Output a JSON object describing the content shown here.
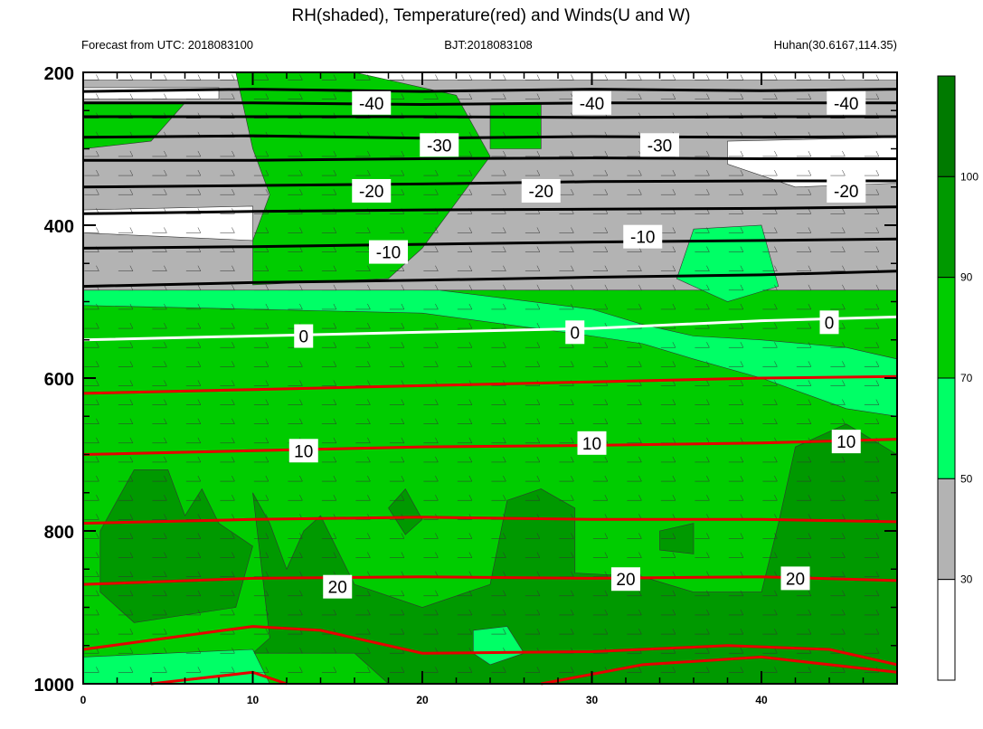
{
  "header": {
    "title": "RH(shaded), Temperature(red) and Winds(U and W)",
    "left": "Forecast from UTC: 2018083100",
    "center": "BJT:2018083108",
    "right": "Huhan(30.6167,114.35)"
  },
  "colors": {
    "gray": "#b3b3b3",
    "light_green": "#00ff66",
    "green": "#00cc00",
    "dark_green": "#009900",
    "darkest_green": "#007a00",
    "temp_red": "#e60000",
    "isotherm_black": "#000000",
    "freezing_white": "#ffffff"
  },
  "chart_data": {
    "type": "heatmap",
    "title": "RH(shaded), Temperature(red) and Winds(U and W)",
    "x": {
      "label": "",
      "range": [
        0,
        48
      ],
      "ticks": [
        "0",
        "10",
        "20",
        "30",
        "40"
      ]
    },
    "y": {
      "label": "",
      "range": [
        1000,
        200
      ],
      "ticks": [
        "200",
        "400",
        "600",
        "800",
        "1000"
      ]
    },
    "colorbar": {
      "labels": [
        "30",
        "50",
        "70",
        "90",
        "100"
      ],
      "levels": [
        {
          "min": 0,
          "max": 30,
          "color": "#ffffff"
        },
        {
          "min": 30,
          "max": 50,
          "color": "#b3b3b3"
        },
        {
          "min": 50,
          "max": 70,
          "color": "#00ff66"
        },
        {
          "min": 70,
          "max": 90,
          "color": "#00cc00"
        },
        {
          "min": 90,
          "max": 100,
          "color": "#009900"
        },
        {
          "min": 100,
          "max": 110,
          "color": "#007a00"
        }
      ]
    },
    "rh_regions": [
      {
        "level": "gray",
        "poly": [
          [
            0,
            210
          ],
          [
            48,
            210
          ],
          [
            48,
            570
          ],
          [
            44,
            560
          ],
          [
            36,
            545
          ],
          [
            33,
            530
          ],
          [
            30,
            520
          ],
          [
            25,
            510
          ],
          [
            20,
            495
          ],
          [
            15,
            485
          ],
          [
            0,
            485
          ]
        ]
      },
      {
        "level": "green",
        "poly": [
          [
            9,
            200
          ],
          [
            16,
            200
          ],
          [
            22,
            230
          ],
          [
            24,
            310
          ],
          [
            22,
            370
          ],
          [
            20,
            430
          ],
          [
            18,
            470
          ],
          [
            10,
            478
          ],
          [
            10,
            420
          ],
          [
            11,
            360
          ],
          [
            10,
            300
          ]
        ]
      },
      {
        "level": "green",
        "poly": [
          [
            0,
            240
          ],
          [
            6,
            240
          ],
          [
            4,
            290
          ],
          [
            0,
            300
          ]
        ]
      },
      {
        "level": "green",
        "poly": [
          [
            24,
            240
          ],
          [
            27,
            240
          ],
          [
            27,
            300
          ],
          [
            24,
            300
          ]
        ]
      },
      {
        "level": "white",
        "poly": [
          [
            0,
            380
          ],
          [
            10,
            375
          ],
          [
            10,
            420
          ],
          [
            0,
            410
          ]
        ]
      },
      {
        "level": "white",
        "poly": [
          [
            38,
            290
          ],
          [
            48,
            285
          ],
          [
            48,
            345
          ],
          [
            42,
            350
          ],
          [
            38,
            320
          ]
        ]
      },
      {
        "level": "white",
        "poly": [
          [
            0,
            220
          ],
          [
            8,
            220
          ],
          [
            8,
            235
          ],
          [
            0,
            235
          ]
        ]
      },
      {
        "level": "green",
        "poly": [
          [
            0,
            485
          ],
          [
            48,
            485
          ],
          [
            48,
            1000
          ],
          [
            0,
            1000
          ]
        ]
      },
      {
        "level": "light",
        "poly": [
          [
            0,
            485
          ],
          [
            21,
            485
          ],
          [
            30,
            510
          ],
          [
            33,
            530
          ],
          [
            36,
            545
          ],
          [
            40,
            550
          ],
          [
            45,
            560
          ],
          [
            48,
            575
          ],
          [
            48,
            650
          ],
          [
            45,
            640
          ],
          [
            40,
            600
          ],
          [
            36,
            575
          ],
          [
            33,
            555
          ],
          [
            30,
            545
          ],
          [
            25,
            530
          ],
          [
            20,
            515
          ],
          [
            10,
            510
          ],
          [
            0,
            505
          ]
        ]
      },
      {
        "level": "light",
        "poly": [
          [
            36,
            405
          ],
          [
            40,
            400
          ],
          [
            41,
            480
          ],
          [
            38,
            500
          ],
          [
            35,
            470
          ]
        ]
      },
      {
        "level": "dark",
        "poly": [
          [
            1,
            800
          ],
          [
            3,
            720
          ],
          [
            5,
            720
          ],
          [
            6,
            780
          ],
          [
            7,
            745
          ],
          [
            8,
            790
          ],
          [
            10,
            820
          ],
          [
            9,
            900
          ],
          [
            3,
            920
          ],
          [
            1,
            880
          ]
        ]
      },
      {
        "level": "dark",
        "poly": [
          [
            10,
            750
          ],
          [
            11,
            790
          ],
          [
            12,
            850
          ],
          [
            13,
            800
          ],
          [
            14,
            780
          ],
          [
            16,
            870
          ],
          [
            20,
            900
          ],
          [
            24,
            870
          ],
          [
            25,
            760
          ],
          [
            27,
            745
          ],
          [
            29,
            770
          ],
          [
            29,
            855
          ],
          [
            33,
            860
          ],
          [
            36,
            880
          ],
          [
            40,
            880
          ],
          [
            41,
            790
          ],
          [
            42,
            690
          ],
          [
            45,
            660
          ],
          [
            48,
            700
          ],
          [
            48,
            1000
          ],
          [
            18,
            1000
          ],
          [
            16,
            960
          ],
          [
            10,
            960
          ],
          [
            11,
            940
          ]
        ]
      },
      {
        "level": "light",
        "poly": [
          [
            23,
            930
          ],
          [
            25,
            925
          ],
          [
            26,
            960
          ],
          [
            24,
            975
          ],
          [
            23,
            960
          ]
        ]
      },
      {
        "level": "light",
        "poly": [
          [
            0,
            965
          ],
          [
            10,
            955
          ],
          [
            11,
            1000
          ],
          [
            0,
            1000
          ]
        ]
      },
      {
        "level": "dark",
        "poly": [
          [
            18,
            770
          ],
          [
            19,
            745
          ],
          [
            20,
            785
          ],
          [
            19,
            805
          ]
        ]
      },
      {
        "level": "dark",
        "poly": [
          [
            34,
            800
          ],
          [
            36,
            790
          ],
          [
            36,
            830
          ],
          [
            34,
            825
          ]
        ]
      }
    ],
    "isotherms": [
      {
        "label": "-40",
        "color": "black",
        "p": [
          [
            0,
            225
          ],
          [
            10,
            222
          ],
          [
            20,
            225
          ],
          [
            30,
            222
          ],
          [
            40,
            224
          ],
          [
            48,
            222
          ]
        ]
      },
      {
        "label": "",
        "color": "black",
        "p": [
          [
            0,
            240
          ],
          [
            10,
            240
          ],
          [
            20,
            242
          ],
          [
            30,
            240
          ],
          [
            40,
            240
          ],
          [
            48,
            240
          ]
        ]
      },
      {
        "label": "",
        "color": "black",
        "p": [
          [
            0,
            258
          ],
          [
            10,
            258
          ],
          [
            20,
            258
          ],
          [
            30,
            259
          ],
          [
            40,
            258
          ],
          [
            48,
            258
          ]
        ]
      },
      {
        "label": "-30",
        "color": "black",
        "p": [
          [
            0,
            285
          ],
          [
            10,
            283
          ],
          [
            20,
            286
          ],
          [
            30,
            284
          ],
          [
            40,
            285
          ],
          [
            48,
            284
          ]
        ]
      },
      {
        "label": "",
        "color": "black",
        "p": [
          [
            0,
            315
          ],
          [
            10,
            315
          ],
          [
            20,
            313
          ],
          [
            30,
            312
          ],
          [
            40,
            313
          ],
          [
            48,
            313
          ]
        ]
      },
      {
        "label": "-20",
        "color": "black",
        "p": [
          [
            0,
            350
          ],
          [
            10,
            348
          ],
          [
            20,
            346
          ],
          [
            30,
            343
          ],
          [
            40,
            342
          ],
          [
            48,
            342
          ]
        ]
      },
      {
        "label": "",
        "color": "black",
        "p": [
          [
            0,
            385
          ],
          [
            10,
            382
          ],
          [
            20,
            380
          ],
          [
            30,
            379
          ],
          [
            40,
            378
          ],
          [
            48,
            376
          ]
        ]
      },
      {
        "label": "-10",
        "color": "black",
        "p": [
          [
            0,
            430
          ],
          [
            10,
            428
          ],
          [
            20,
            425
          ],
          [
            30,
            422
          ],
          [
            40,
            420
          ],
          [
            48,
            418
          ]
        ]
      },
      {
        "label": "",
        "color": "black",
        "p": [
          [
            0,
            480
          ],
          [
            10,
            475
          ],
          [
            20,
            472
          ],
          [
            30,
            468
          ],
          [
            40,
            465
          ],
          [
            48,
            460
          ]
        ]
      },
      {
        "label": "0",
        "color": "white",
        "p": [
          [
            0,
            550
          ],
          [
            10,
            545
          ],
          [
            20,
            540
          ],
          [
            30,
            535
          ],
          [
            40,
            525
          ],
          [
            48,
            520
          ]
        ]
      },
      {
        "label": "",
        "color": "red",
        "p": [
          [
            0,
            620
          ],
          [
            10,
            615
          ],
          [
            20,
            610
          ],
          [
            30,
            605
          ],
          [
            40,
            600
          ],
          [
            48,
            598
          ]
        ]
      },
      {
        "label": "10",
        "color": "red",
        "p": [
          [
            0,
            700
          ],
          [
            10,
            695
          ],
          [
            20,
            690
          ],
          [
            30,
            688
          ],
          [
            40,
            685
          ],
          [
            48,
            680
          ]
        ]
      },
      {
        "label": "",
        "color": "red",
        "p": [
          [
            0,
            790
          ],
          [
            10,
            785
          ],
          [
            20,
            782
          ],
          [
            30,
            785
          ],
          [
            40,
            785
          ],
          [
            48,
            788
          ]
        ]
      },
      {
        "label": "20",
        "color": "red",
        "p": [
          [
            0,
            870
          ],
          [
            10,
            862
          ],
          [
            20,
            860
          ],
          [
            30,
            862
          ],
          [
            40,
            860
          ],
          [
            48,
            865
          ]
        ]
      },
      {
        "label": "",
        "color": "red",
        "p": [
          [
            0,
            955
          ],
          [
            10,
            925
          ],
          [
            14,
            930
          ],
          [
            20,
            960
          ],
          [
            30,
            958
          ],
          [
            38,
            950
          ],
          [
            44,
            955
          ],
          [
            48,
            975
          ]
        ]
      },
      {
        "label": "",
        "color": "red",
        "p": [
          [
            4,
            1000
          ],
          [
            10,
            985
          ],
          [
            12,
            1000
          ]
        ]
      },
      {
        "label": "",
        "color": "red",
        "p": [
          [
            27,
            1000
          ],
          [
            33,
            975
          ],
          [
            40,
            965
          ],
          [
            48,
            985
          ]
        ]
      }
    ],
    "contour_labels": [
      {
        "text": "-40",
        "x": 17,
        "y": 240
      },
      {
        "text": "-40",
        "x": 30,
        "y": 240
      },
      {
        "text": "-40",
        "x": 45,
        "y": 240
      },
      {
        "text": "-30",
        "x": 21,
        "y": 295
      },
      {
        "text": "-30",
        "x": 34,
        "y": 295
      },
      {
        "text": "-20",
        "x": 17,
        "y": 355
      },
      {
        "text": "-20",
        "x": 27,
        "y": 355
      },
      {
        "text": "-20",
        "x": 45,
        "y": 355
      },
      {
        "text": "-10",
        "x": 18,
        "y": 435
      },
      {
        "text": "-10",
        "x": 33,
        "y": 415
      },
      {
        "text": "0",
        "x": 13,
        "y": 545
      },
      {
        "text": "0",
        "x": 29,
        "y": 540
      },
      {
        "text": "0",
        "x": 44,
        "y": 527
      },
      {
        "text": "10",
        "x": 13,
        "y": 695
      },
      {
        "text": "10",
        "x": 30,
        "y": 685
      },
      {
        "text": "10",
        "x": 45,
        "y": 683
      },
      {
        "text": "20",
        "x": 15,
        "y": 873
      },
      {
        "text": "20",
        "x": 32,
        "y": 863
      },
      {
        "text": "20",
        "x": 42,
        "y": 862
      }
    ],
    "grid": false
  }
}
